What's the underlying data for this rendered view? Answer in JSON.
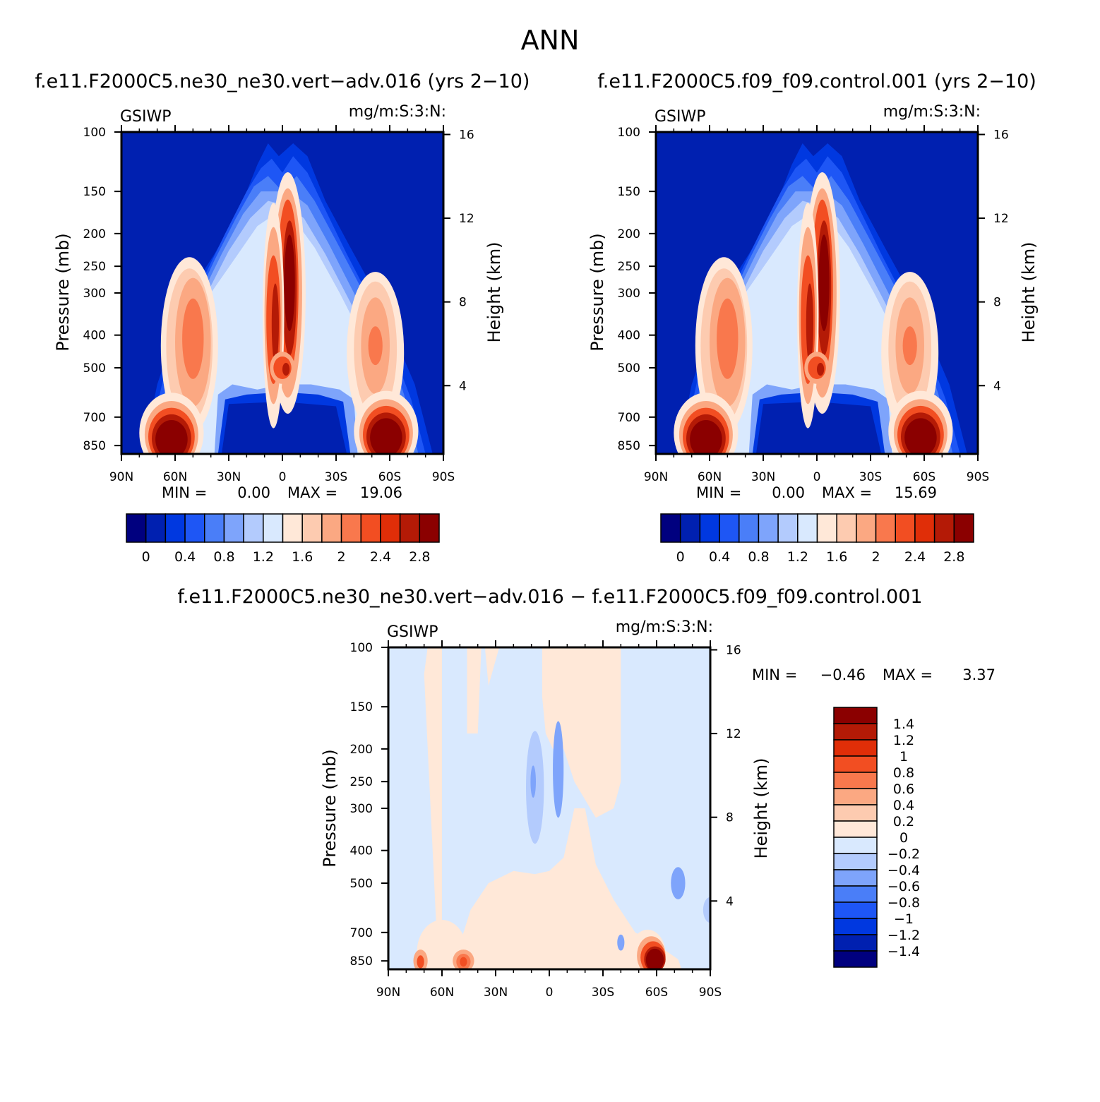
{
  "figure": {
    "title": "ANN"
  },
  "chart_data": [
    {
      "type": "heatmap",
      "title": "f.e11.F2000C5.ne30_ne30.vert−adv.016 (yrs 2−10)",
      "left_label": "GSIWP",
      "right_label": "mg/m:S:3:N:",
      "ylabel": "Pressure (mb)",
      "y2label": "Height (km)",
      "x_ticks": [
        "90N",
        "60N",
        "30N",
        "0",
        "30S",
        "60S",
        "90S"
      ],
      "y_ticks": [
        "100",
        "150",
        "200",
        "250",
        "300",
        "400",
        "500",
        "700",
        "850"
      ],
      "y2_ticks": [
        "16",
        "12",
        "8",
        "4"
      ],
      "xlim": [
        90,
        -90
      ],
      "ylim": [
        1000,
        100
      ],
      "stats": {
        "min_label": "MIN =",
        "min": "0.00",
        "max_label": "MAX =",
        "max": "19.06"
      },
      "colorbar": {
        "labels": [
          "0",
          "0.4",
          "0.8",
          "1.2",
          "1.6",
          "2",
          "2.4",
          "2.8"
        ],
        "colors": [
          "#00007f",
          "#0020b0",
          "#0038e0",
          "#1e56f5",
          "#4a7ef8",
          "#7ea4fb",
          "#b3cbfd",
          "#d9e9fe",
          "#ffe8d8",
          "#fdcbb0",
          "#fba882",
          "#f9784d",
          "#f24e22",
          "#e02e08",
          "#b41a06",
          "#8b0000"
        ]
      },
      "features": [
        {
          "lat": 62,
          "p": 810,
          "level": 15
        },
        {
          "lat": 52,
          "p": 420,
          "level": 11
        },
        {
          "lat": -4,
          "p": 290,
          "level": 15
        },
        {
          "lat": 4,
          "p": 360,
          "level": 14
        },
        {
          "lat": 0,
          "p": 490,
          "level": 14
        },
        {
          "lat": -58,
          "p": 790,
          "level": 15
        },
        {
          "lat": -52,
          "p": 430,
          "level": 11
        }
      ]
    },
    {
      "type": "heatmap",
      "title": "f.e11.F2000C5.f09_f09.control.001 (yrs 2−10)",
      "left_label": "GSIWP",
      "right_label": "mg/m:S:3:N:",
      "ylabel": "Pressure (mb)",
      "y2label": "Height (km)",
      "x_ticks": [
        "90N",
        "60N",
        "30N",
        "0",
        "30S",
        "60S",
        "90S"
      ],
      "y_ticks": [
        "100",
        "150",
        "200",
        "250",
        "300",
        "400",
        "500",
        "700",
        "850"
      ],
      "y2_ticks": [
        "16",
        "12",
        "8",
        "4"
      ],
      "xlim": [
        90,
        -90
      ],
      "ylim": [
        1000,
        100
      ],
      "stats": {
        "min_label": "MIN =",
        "min": "0.00",
        "max_label": "MAX =",
        "max": "15.69"
      },
      "colorbar": {
        "labels": [
          "0",
          "0.4",
          "0.8",
          "1.2",
          "1.6",
          "2",
          "2.4",
          "2.8"
        ],
        "colors": [
          "#00007f",
          "#0020b0",
          "#0038e0",
          "#1e56f5",
          "#4a7ef8",
          "#7ea4fb",
          "#b3cbfd",
          "#d9e9fe",
          "#ffe8d8",
          "#fdcbb0",
          "#fba882",
          "#f9784d",
          "#f24e22",
          "#e02e08",
          "#b41a06",
          "#8b0000"
        ]
      },
      "features": [
        {
          "lat": 62,
          "p": 810,
          "level": 15
        },
        {
          "lat": 52,
          "p": 420,
          "level": 11
        },
        {
          "lat": -4,
          "p": 290,
          "level": 15
        },
        {
          "lat": 4,
          "p": 360,
          "level": 14
        },
        {
          "lat": 0,
          "p": 490,
          "level": 14
        },
        {
          "lat": -58,
          "p": 790,
          "level": 15
        },
        {
          "lat": -52,
          "p": 430,
          "level": 11
        }
      ]
    },
    {
      "type": "heatmap",
      "title": "f.e11.F2000C5.ne30_ne30.vert−adv.016 − f.e11.F2000C5.f09_f09.control.001",
      "left_label": "GSIWP",
      "right_label": "mg/m:S:3:N:",
      "ylabel": "Pressure (mb)",
      "y2label": "Height (km)",
      "x_ticks": [
        "90N",
        "60N",
        "30N",
        "0",
        "30S",
        "60S",
        "90S"
      ],
      "y_ticks": [
        "100",
        "150",
        "200",
        "250",
        "300",
        "400",
        "500",
        "700",
        "850"
      ],
      "y2_ticks": [
        "16",
        "12",
        "8",
        "4"
      ],
      "xlim": [
        90,
        -90
      ],
      "ylim": [
        1000,
        100
      ],
      "stats": {
        "min_label": "MIN =",
        "min": "−0.46",
        "max_label": "MAX =",
        "max": "3.37"
      },
      "colorbar": {
        "labels": [
          "1.4",
          "1.2",
          "1",
          "0.8",
          "0.6",
          "0.4",
          "0.2",
          "0",
          "−0.2",
          "−0.4",
          "−0.6",
          "−0.8",
          "−1",
          "−1.2",
          "−1.4"
        ],
        "colors": [
          "#8b0000",
          "#b41a06",
          "#e02e08",
          "#f24e22",
          "#f9784d",
          "#fba882",
          "#fdcbb0",
          "#ffe8d8",
          "#d9e9fe",
          "#b3cbfd",
          "#7ea4fb",
          "#4a7ef8",
          "#1e56f5",
          "#0038e0",
          "#0020b0",
          "#00007f"
        ]
      },
      "features": [
        {
          "lat": 72,
          "p": 850,
          "level": 12
        },
        {
          "lat": 48,
          "p": 860,
          "level": 12
        },
        {
          "lat": -58,
          "p": 840,
          "level": 15
        },
        {
          "lat": 10,
          "p": 260,
          "level": 5
        }
      ]
    }
  ]
}
